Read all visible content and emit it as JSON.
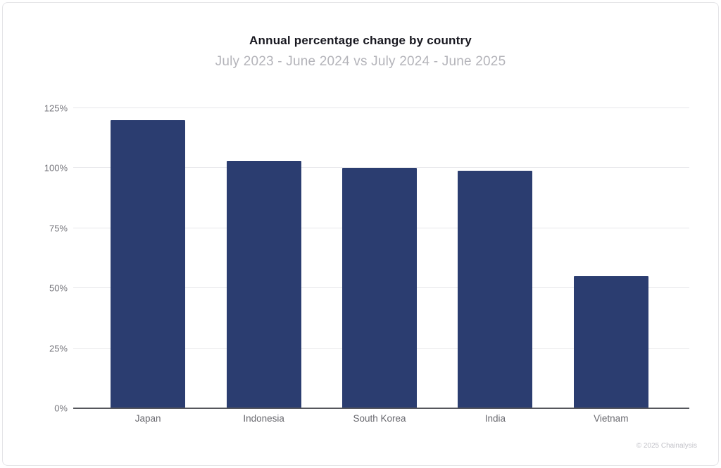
{
  "header": {
    "title": "Annual percentage change by country",
    "subtitle": "July 2023 - June 2024 vs July 2024 - June 2025"
  },
  "chart_data": {
    "type": "bar",
    "title": "Annual percentage change by country",
    "subtitle": "July 2023 - June 2024 vs July 2024 - June 2025",
    "categories": [
      "Japan",
      "Indonesia",
      "South Korea",
      "India",
      "Vietnam"
    ],
    "values": [
      120,
      103,
      100,
      99,
      55
    ],
    "unit": "%",
    "y_ticks": [
      0,
      25,
      50,
      75,
      100,
      125
    ],
    "y_tick_labels": [
      "0%",
      "25%",
      "50%",
      "75%",
      "100%",
      "125%"
    ],
    "ylim": [
      0,
      125
    ],
    "xlabel": "",
    "ylabel": "",
    "grid": true,
    "legend_position": "none",
    "bar_color": "#2B3D70",
    "gridline_color": "#e7e7ea",
    "axis_line_color": "#55565c"
  },
  "footer": {
    "credit": "© 2025 Chainalysis"
  }
}
